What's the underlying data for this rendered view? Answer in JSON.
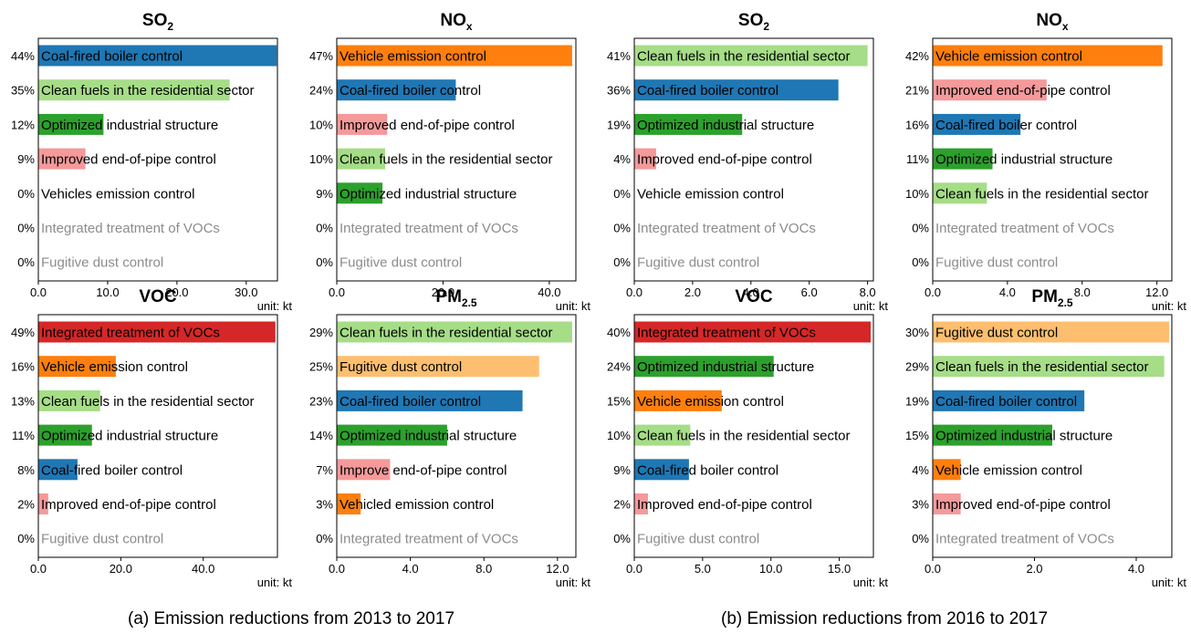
{
  "unit_label": "unit:  kt",
  "captions": {
    "a": "(a) Emission reductions from 2013 to 2017",
    "b": "(b) Emission reductions from 2016 to 2017"
  },
  "colors": {
    "Coal-fired boiler control": "#1f77b4",
    "Clean fuels in the residential sector": "#a6dd87",
    "Optimized industrial structure": "#2ca02c",
    "Improved end-of-pipe control": "#f5999a",
    "Improve end-of-pipe control": "#f5999a",
    "Vehicle emission control": "#ff7f0e",
    "Vehicles emission control": "#ff7f0e",
    "Vehicled emission control": "#ff7f0e",
    "Integrated treatment of VOCs": "#d62728",
    "Fugitive dust control": "#fdbf6f"
  },
  "zero_text_color": "#8c8c8c",
  "chart_data": [
    {
      "type": "bar",
      "title": "SO",
      "title_sub": "2",
      "xlim": [
        0,
        34.5
      ],
      "ticks": [
        0,
        10,
        20,
        30
      ],
      "tick_labels": [
        "0.0",
        "10.0",
        "20.0",
        "30.0"
      ],
      "categories": [
        "Coal-fired boiler control",
        "Clean fuels in the residential sector",
        "Optimized industrial structure",
        "Improved end-of-pipe control",
        "Vehicles emission control",
        "Integrated treatment of VOCs",
        "Fugitive dust control"
      ],
      "values": [
        34.4,
        27.6,
        9.4,
        6.8,
        0,
        0,
        0
      ],
      "percents": [
        "44%",
        "35%",
        "12%",
        "9%",
        "0%",
        "0%",
        "0%"
      ]
    },
    {
      "type": "bar",
      "title": "NO",
      "title_sub": "x",
      "xlim": [
        0,
        45
      ],
      "ticks": [
        0,
        20,
        40
      ],
      "tick_labels": [
        "0.0",
        "20.0",
        "40.0"
      ],
      "categories": [
        "Vehicle emission control",
        "Coal-fired boiler control",
        "Improved end-of-pipe control",
        "Clean fuels in the residential sector",
        "Optimized industrial structure",
        "Integrated treatment of VOCs",
        "Fugitive dust control"
      ],
      "values": [
        44.3,
        22.4,
        9.5,
        9.1,
        8.6,
        0,
        0
      ],
      "percents": [
        "47%",
        "24%",
        "10%",
        "10%",
        "9%",
        "0%",
        "0%"
      ]
    },
    {
      "type": "bar",
      "title": "SO",
      "title_sub": "2",
      "xlim": [
        0,
        8.2
      ],
      "ticks": [
        0,
        2,
        4,
        6,
        8
      ],
      "tick_labels": [
        "0.0",
        "2.0",
        "4.0",
        "6.0",
        "8.0"
      ],
      "categories": [
        "Clean fuels in the residential sector",
        "Coal-fired boiler control",
        "Optimized industrial structure",
        "Improved end-of-pipe control",
        "Vehicle emission control",
        "Integrated treatment of VOCs",
        "Fugitive dust control"
      ],
      "values": [
        8.0,
        7.0,
        3.7,
        0.75,
        0,
        0,
        0
      ],
      "percents": [
        "41%",
        "36%",
        "19%",
        "4%",
        "0%",
        "0%",
        "0%"
      ]
    },
    {
      "type": "bar",
      "title": "NO",
      "title_sub": "x",
      "xlim": [
        0,
        12.8
      ],
      "ticks": [
        0,
        4,
        8,
        12
      ],
      "tick_labels": [
        "0.0",
        "4.0",
        "8.0",
        "12.0"
      ],
      "categories": [
        "Vehicle emission control",
        "Improved end-of-pipe control",
        "Coal-fired boiler control",
        "Optimized industrial structure",
        "Clean fuels in the residential sector",
        "Integrated treatment of VOCs",
        "Fugitive dust control"
      ],
      "values": [
        12.3,
        6.1,
        4.7,
        3.2,
        2.9,
        0,
        0
      ],
      "percents": [
        "42%",
        "21%",
        "16%",
        "11%",
        "10%",
        "0%",
        "0%"
      ]
    },
    {
      "type": "bar",
      "title": "VOC",
      "title_sub": "",
      "xlim": [
        0,
        58
      ],
      "ticks": [
        0,
        20,
        40
      ],
      "tick_labels": [
        "0.0",
        "20.0",
        "40.0"
      ],
      "categories": [
        "Integrated treatment of VOCs",
        "Vehicle emission control",
        "Clean fuels in the residential sector",
        "Optimized industrial structure",
        "Coal-fired boiler control",
        "Improved end-of-pipe control",
        "Fugitive dust control"
      ],
      "values": [
        57.5,
        18.8,
        15.0,
        13.0,
        9.5,
        2.4,
        0
      ],
      "percents": [
        "49%",
        "16%",
        "13%",
        "11%",
        "8%",
        "2%",
        "0%"
      ]
    },
    {
      "type": "bar",
      "title": "PM",
      "title_sub": "2.5",
      "xlim": [
        0,
        13
      ],
      "ticks": [
        0,
        4,
        8,
        12
      ],
      "tick_labels": [
        "0.0",
        "4.0",
        "8.0",
        "12.0"
      ],
      "categories": [
        "Clean fuels in the residential sector",
        "Fugitive dust control",
        "Coal-fired boiler control",
        "Optimized industrial structure",
        "Improve end-of-pipe control",
        "Vehicled emission control",
        "Integrated treatment of VOCs"
      ],
      "values": [
        12.8,
        11.0,
        10.1,
        6.0,
        2.9,
        1.3,
        0
      ],
      "percents": [
        "29%",
        "25%",
        "23%",
        "14%",
        "7%",
        "3%",
        "0%"
      ]
    },
    {
      "type": "bar",
      "title": "VOC",
      "title_sub": "",
      "xlim": [
        0,
        17.5
      ],
      "ticks": [
        0,
        5,
        10,
        15
      ],
      "tick_labels": [
        "0.0",
        "5.0",
        "10.0",
        "15.0"
      ],
      "categories": [
        "Integrated treatment of VOCs",
        "Optimized industrial structure",
        "Vehicle emission control",
        "Clean fuels in the residential sector",
        "Coal-fired boiler control",
        "Improved end-of-pipe control",
        "Fugitive dust control"
      ],
      "values": [
        17.3,
        10.2,
        6.4,
        4.1,
        4.0,
        1.0,
        0
      ],
      "percents": [
        "40%",
        "24%",
        "15%",
        "10%",
        "9%",
        "2%",
        "0%"
      ]
    },
    {
      "type": "bar",
      "title": "PM",
      "title_sub": "2.5",
      "xlim": [
        0,
        4.7
      ],
      "ticks": [
        0,
        2,
        4
      ],
      "tick_labels": [
        "0.0",
        "2.0",
        "4.0"
      ],
      "categories": [
        "Fugitive dust control",
        "Clean fuels in the residential sector",
        "Coal-fired boiler control",
        "Optimized industrial structure",
        "Vehicle emission control",
        "Improved end-of-pipe control",
        "Integrated treatment of VOCs"
      ],
      "values": [
        4.65,
        4.55,
        2.98,
        2.35,
        0.55,
        0.55,
        0
      ],
      "percents": [
        "30%",
        "29%",
        "19%",
        "15%",
        "4%",
        "3%",
        "0%"
      ]
    }
  ]
}
